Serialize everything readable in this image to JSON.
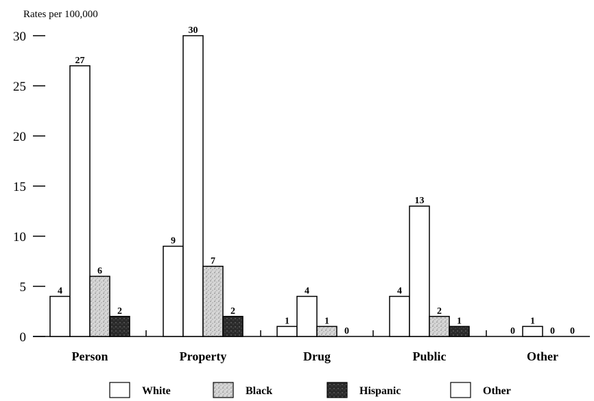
{
  "chart_data": {
    "type": "bar",
    "ylabel": "Rates per 100,000",
    "ylim": [
      0,
      30
    ],
    "yticks": [
      0,
      5,
      10,
      15,
      20,
      25,
      30
    ],
    "categories": [
      "Person",
      "Property",
      "Drug",
      "Public",
      "Other"
    ],
    "series": [
      {
        "name": "White",
        "values": [
          4,
          9,
          1,
          4,
          0
        ],
        "color": "#ffffff",
        "pattern": "none"
      },
      {
        "name": "Other",
        "values": [
          27,
          30,
          4,
          13,
          1
        ],
        "color": "#ffffff",
        "pattern": "none"
      },
      {
        "name": "Black",
        "values": [
          6,
          7,
          1,
          2,
          0
        ],
        "color": "#c8c8c8",
        "pattern": "light-stipple"
      },
      {
        "name": "Hispanic",
        "values": [
          2,
          2,
          0,
          1,
          0
        ],
        "color": "#2a2a2a",
        "pattern": "dark-stipple"
      }
    ],
    "legend": [
      "White",
      "Black",
      "Hispanic",
      "Other"
    ],
    "legend_placement": "bottom",
    "grid": false
  }
}
